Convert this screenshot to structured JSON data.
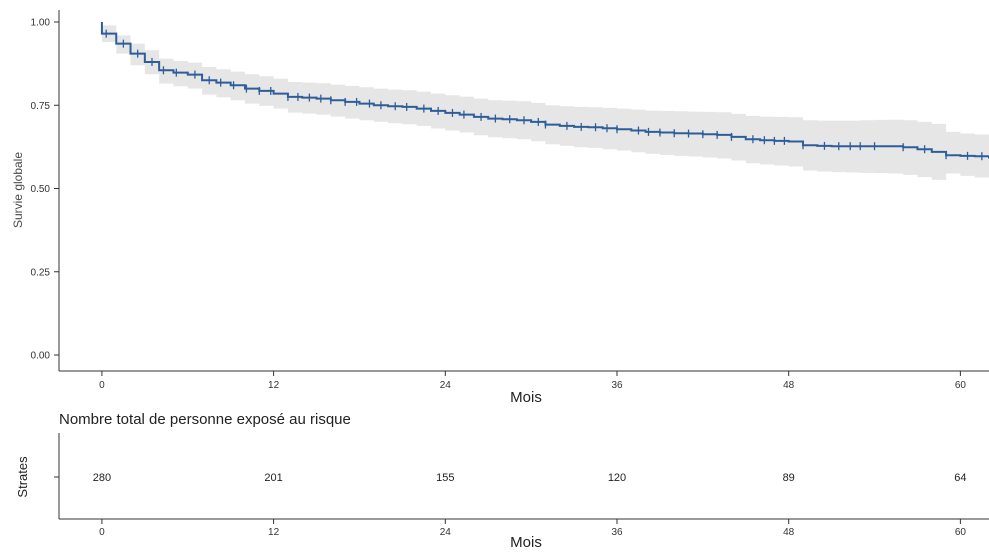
{
  "chart_data": [
    {
      "type": "line",
      "subtype": "kaplan-meier survival curve",
      "title": "",
      "xlabel": "Mois",
      "ylabel": "Survie globale",
      "xlim": [
        -3,
        62
      ],
      "ylim": [
        0,
        1.02
      ],
      "x_ticks": [
        0,
        12,
        24,
        36,
        48,
        60
      ],
      "x_tick_labels": [
        "0",
        "12",
        "24",
        "36",
        "48",
        "60"
      ],
      "y_ticks": [
        0,
        0.25,
        0.5,
        0.75,
        1.0
      ],
      "y_tick_labels": [
        "0.00",
        "0.25",
        "0.50",
        "0.75",
        "1.00"
      ],
      "grid": false,
      "colors": {
        "curve": "#2e5e9a",
        "band": "#e6e6e6",
        "axis": "#333333"
      },
      "series": [
        {
          "x": [
            0,
            1,
            2,
            3,
            4,
            5,
            6,
            7,
            8,
            9,
            10,
            11,
            12,
            13,
            14,
            15,
            16,
            17,
            18,
            19,
            20,
            21,
            22,
            23,
            24,
            25,
            26,
            27,
            28,
            29,
            30,
            31,
            32,
            33,
            34,
            35,
            36,
            37,
            38,
            39,
            40,
            41,
            42,
            43,
            44,
            45,
            46,
            47,
            48,
            49,
            50,
            51,
            52,
            53,
            54,
            55,
            56,
            57,
            58,
            59,
            60,
            61,
            62
          ],
          "y": [
            0.965,
            0.935,
            0.905,
            0.88,
            0.855,
            0.848,
            0.842,
            0.825,
            0.818,
            0.81,
            0.8,
            0.793,
            0.785,
            0.775,
            0.773,
            0.77,
            0.765,
            0.76,
            0.755,
            0.75,
            0.747,
            0.745,
            0.74,
            0.733,
            0.727,
            0.722,
            0.715,
            0.71,
            0.708,
            0.705,
            0.7,
            0.692,
            0.688,
            0.685,
            0.684,
            0.681,
            0.678,
            0.674,
            0.67,
            0.668,
            0.666,
            0.665,
            0.663,
            0.661,
            0.655,
            0.648,
            0.645,
            0.643,
            0.641,
            0.63,
            0.628,
            0.627,
            0.627,
            0.627,
            0.627,
            0.627,
            0.624,
            0.618,
            0.61,
            0.6,
            0.598,
            0.597,
            0.59
          ],
          "lower": [
            0.94,
            0.905,
            0.87,
            0.843,
            0.815,
            0.807,
            0.8,
            0.782,
            0.774,
            0.765,
            0.755,
            0.748,
            0.74,
            0.728,
            0.725,
            0.722,
            0.716,
            0.71,
            0.705,
            0.7,
            0.696,
            0.693,
            0.688,
            0.68,
            0.674,
            0.668,
            0.66,
            0.654,
            0.651,
            0.648,
            0.642,
            0.633,
            0.628,
            0.624,
            0.622,
            0.618,
            0.614,
            0.609,
            0.604,
            0.601,
            0.598,
            0.596,
            0.593,
            0.59,
            0.584,
            0.576,
            0.572,
            0.569,
            0.566,
            0.554,
            0.551,
            0.549,
            0.548,
            0.547,
            0.546,
            0.545,
            0.541,
            0.534,
            0.526,
            0.545,
            0.538,
            0.533,
            0.52
          ],
          "upper": [
            0.99,
            0.96,
            0.935,
            0.915,
            0.89,
            0.883,
            0.878,
            0.865,
            0.858,
            0.851,
            0.843,
            0.837,
            0.83,
            0.82,
            0.818,
            0.816,
            0.812,
            0.808,
            0.804,
            0.8,
            0.797,
            0.795,
            0.791,
            0.785,
            0.78,
            0.776,
            0.77,
            0.765,
            0.764,
            0.762,
            0.757,
            0.75,
            0.747,
            0.745,
            0.744,
            0.742,
            0.74,
            0.737,
            0.734,
            0.733,
            0.732,
            0.731,
            0.73,
            0.729,
            0.724,
            0.718,
            0.716,
            0.715,
            0.714,
            0.705,
            0.704,
            0.704,
            0.704,
            0.705,
            0.706,
            0.707,
            0.705,
            0.7,
            0.694,
            0.67,
            0.665,
            0.662,
            0.655
          ],
          "censor_x": [
            0.3,
            1.5,
            2.5,
            3.5,
            4.3,
            5.2,
            6.5,
            7.5,
            8.3,
            9.2,
            10.1,
            11.0,
            11.8,
            13.0,
            13.7,
            14.5,
            15.3,
            16.0,
            17.0,
            17.8,
            18.7,
            19.5,
            20.5,
            21.3,
            22.5,
            23.5,
            24.5,
            25.3,
            26.5,
            27.5,
            28.5,
            29.5,
            30.5,
            31.0,
            32.5,
            33.5,
            34.5,
            35.3,
            36.0,
            37.5,
            38.2,
            39.0,
            40.0,
            41.0,
            42.0,
            43.0,
            44.0,
            45.5,
            46.3,
            47.0,
            47.7,
            49.0,
            50.5,
            51.5,
            52.3,
            53.0,
            54.0,
            56.0,
            57.5,
            59.0,
            60.5,
            61.5
          ]
        }
      ]
    },
    {
      "type": "table",
      "title": "Nombre total de personne exposé au risque",
      "xlabel": "Mois",
      "ylabel": "Strates",
      "xlim": [
        -3,
        62
      ],
      "x_ticks": [
        0,
        12,
        24,
        36,
        48,
        60
      ],
      "x_tick_labels": [
        "0",
        "12",
        "24",
        "36",
        "48",
        "60"
      ],
      "categories": [
        "0",
        "12",
        "24",
        "36",
        "48",
        "60"
      ],
      "values": [
        280,
        201,
        155,
        120,
        89,
        64
      ],
      "value_labels": [
        "280",
        "201",
        "155",
        "120",
        "89",
        "64"
      ]
    }
  ]
}
